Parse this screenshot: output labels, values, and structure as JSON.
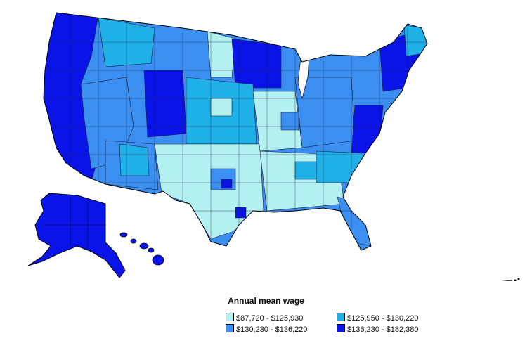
{
  "legend": {
    "title": "Annual mean wage",
    "items": [
      {
        "label": "$87,720 - $125,930",
        "color": "#b3f0f0"
      },
      {
        "label": "$125,950 - $130,220",
        "color": "#1fb0e8"
      },
      {
        "label": "$130,230 - $136,220",
        "color": "#3a8ff0"
      },
      {
        "label": "$136,230 - $182,380",
        "color": "#0a14e8"
      }
    ]
  },
  "map": {
    "regions": [
      {
        "name": "west-coast",
        "class": 3
      },
      {
        "name": "nevada-idaho",
        "class": 2
      },
      {
        "name": "montana-wyoming-colorado",
        "class": 2
      },
      {
        "name": "dakotas-minnesota",
        "class": 3
      },
      {
        "name": "great-plains",
        "class": 1
      },
      {
        "name": "texas-oklahoma",
        "class": 0
      },
      {
        "name": "southwest",
        "class": 2
      },
      {
        "name": "midwest-mixed",
        "class": 2
      },
      {
        "name": "southeast",
        "class": 1
      },
      {
        "name": "florida",
        "class": 2
      },
      {
        "name": "northeast",
        "class": 3
      },
      {
        "name": "alaska",
        "class": 3
      },
      {
        "name": "hawaii",
        "class": 3
      },
      {
        "name": "puerto-rico",
        "class": 0
      }
    ]
  }
}
